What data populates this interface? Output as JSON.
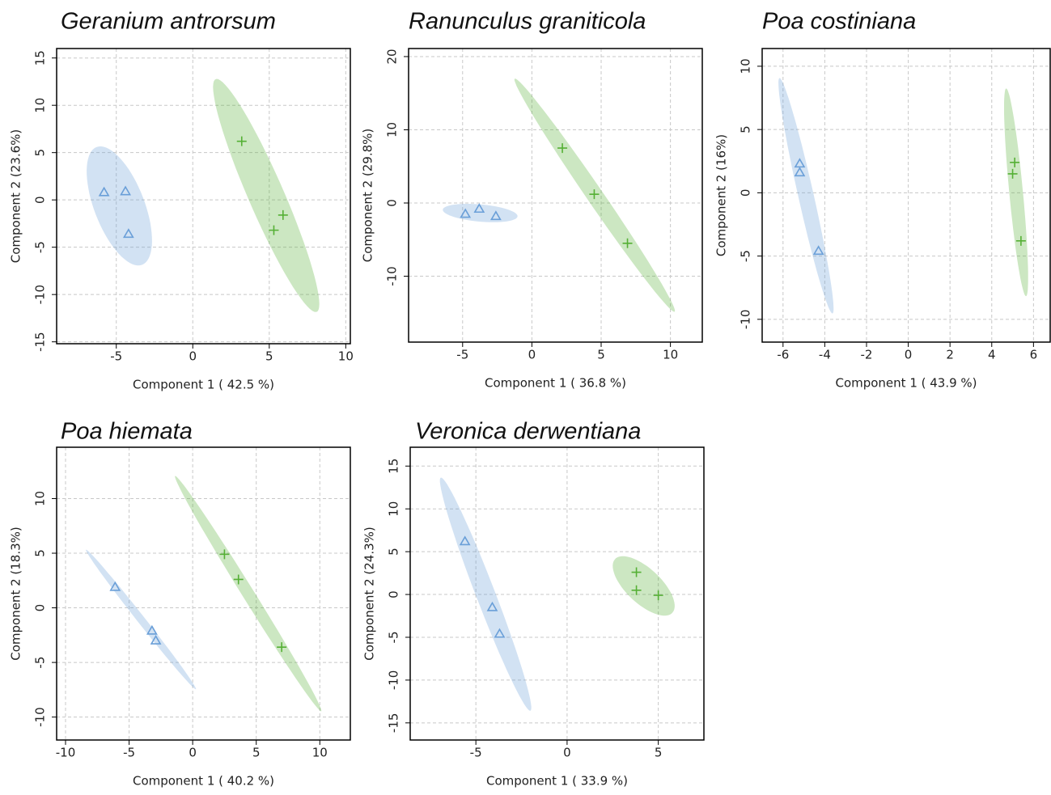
{
  "chart_data": [
    {
      "type": "scatter",
      "title": "Geranium antrorsum",
      "xlabel": "Component 1 ( 42.5 %)",
      "ylabel": "Component 2 (23.6%)",
      "xlim": [
        -8.9,
        10.3
      ],
      "ylim": [
        -15.2,
        16.0
      ],
      "xticks": [
        -5,
        0,
        5,
        10
      ],
      "yticks": [
        -15,
        -10,
        -5,
        0,
        5,
        10,
        15
      ],
      "grid": true,
      "series": [
        {
          "color": "#6a9fd8",
          "marker": "triangle",
          "x": [
            -5.8,
            -4.4,
            -4.2
          ],
          "values": [
            0.8,
            0.9,
            -3.6
          ]
        },
        {
          "color": "#55b035",
          "marker": "plus",
          "x": [
            3.2,
            5.9,
            5.3
          ],
          "values": [
            6.2,
            -1.6,
            -3.2
          ]
        }
      ]
    },
    {
      "type": "scatter",
      "title": "Ranunculus graniticola",
      "xlabel": "Component 1 ( 36.8 %)",
      "ylabel": "Component 2 (29.8%)",
      "xlim": [
        -8.9,
        12.3
      ],
      "ylim": [
        -19.0,
        21.1
      ],
      "xticks": [
        -5,
        0,
        5,
        10
      ],
      "yticks": [
        -10,
        0,
        10,
        20
      ],
      "grid": true,
      "series": [
        {
          "color": "#6a9fd8",
          "marker": "triangle",
          "x": [
            -4.8,
            -3.8,
            -2.6
          ],
          "values": [
            -1.5,
            -0.8,
            -1.8
          ]
        },
        {
          "color": "#55b035",
          "marker": "plus",
          "x": [
            2.2,
            4.5,
            6.9
          ],
          "values": [
            7.5,
            1.2,
            -5.5
          ]
        }
      ]
    },
    {
      "type": "scatter",
      "title": "Poa costiniana",
      "xlabel": "Component 1 ( 43.9 %)",
      "ylabel": "Component 2 (16%)",
      "xlim": [
        -7.0,
        6.8
      ],
      "ylim": [
        -11.8,
        11.4
      ],
      "xticks": [
        -6,
        -4,
        -2,
        0,
        2,
        4,
        6
      ],
      "yticks": [
        -10,
        -5,
        0,
        5,
        10
      ],
      "grid": true,
      "series": [
        {
          "color": "#6a9fd8",
          "marker": "triangle",
          "x": [
            -5.2,
            -5.2,
            -4.3
          ],
          "values": [
            2.3,
            1.6,
            -4.6
          ]
        },
        {
          "color": "#55b035",
          "marker": "plus",
          "x": [
            5.1,
            5.0,
            5.4
          ],
          "values": [
            2.4,
            1.5,
            -3.8
          ]
        }
      ]
    },
    {
      "type": "scatter",
      "title": "Poa hiemata",
      "xlabel": "Component 1 ( 40.2 %)",
      "ylabel": "Component 2 (18.3%)",
      "xlim": [
        -10.7,
        12.4
      ],
      "ylim": [
        -12.1,
        14.7
      ],
      "xticks": [
        -10,
        -5,
        0,
        5,
        10
      ],
      "yticks": [
        -10,
        -5,
        0,
        5,
        10
      ],
      "grid": true,
      "series": [
        {
          "color": "#6a9fd8",
          "marker": "triangle",
          "x": [
            -6.1,
            -3.2,
            -2.9
          ],
          "values": [
            1.9,
            -2.1,
            -3.0
          ]
        },
        {
          "color": "#55b035",
          "marker": "plus",
          "x": [
            2.5,
            3.6,
            7.0
          ],
          "values": [
            4.9,
            2.6,
            -3.6
          ]
        }
      ]
    },
    {
      "type": "scatter",
      "title": "Veronica derwentiana",
      "xlabel": "Component 1 ( 33.9 %)",
      "ylabel": "Component 2 (24.3%)",
      "xlim": [
        -8.6,
        7.5
      ],
      "ylim": [
        -17.0,
        17.2
      ],
      "xticks": [
        -5,
        0,
        5
      ],
      "yticks": [
        -15,
        -10,
        -5,
        0,
        5,
        10,
        15
      ],
      "grid": true,
      "series": [
        {
          "color": "#6a9fd8",
          "marker": "triangle",
          "x": [
            -5.6,
            -4.1,
            -3.7
          ],
          "values": [
            6.2,
            -1.5,
            -4.6
          ]
        },
        {
          "color": "#55b035",
          "marker": "plus",
          "x": [
            3.8,
            3.8,
            5.0
          ],
          "values": [
            2.6,
            0.5,
            -0.1
          ]
        }
      ]
    }
  ]
}
